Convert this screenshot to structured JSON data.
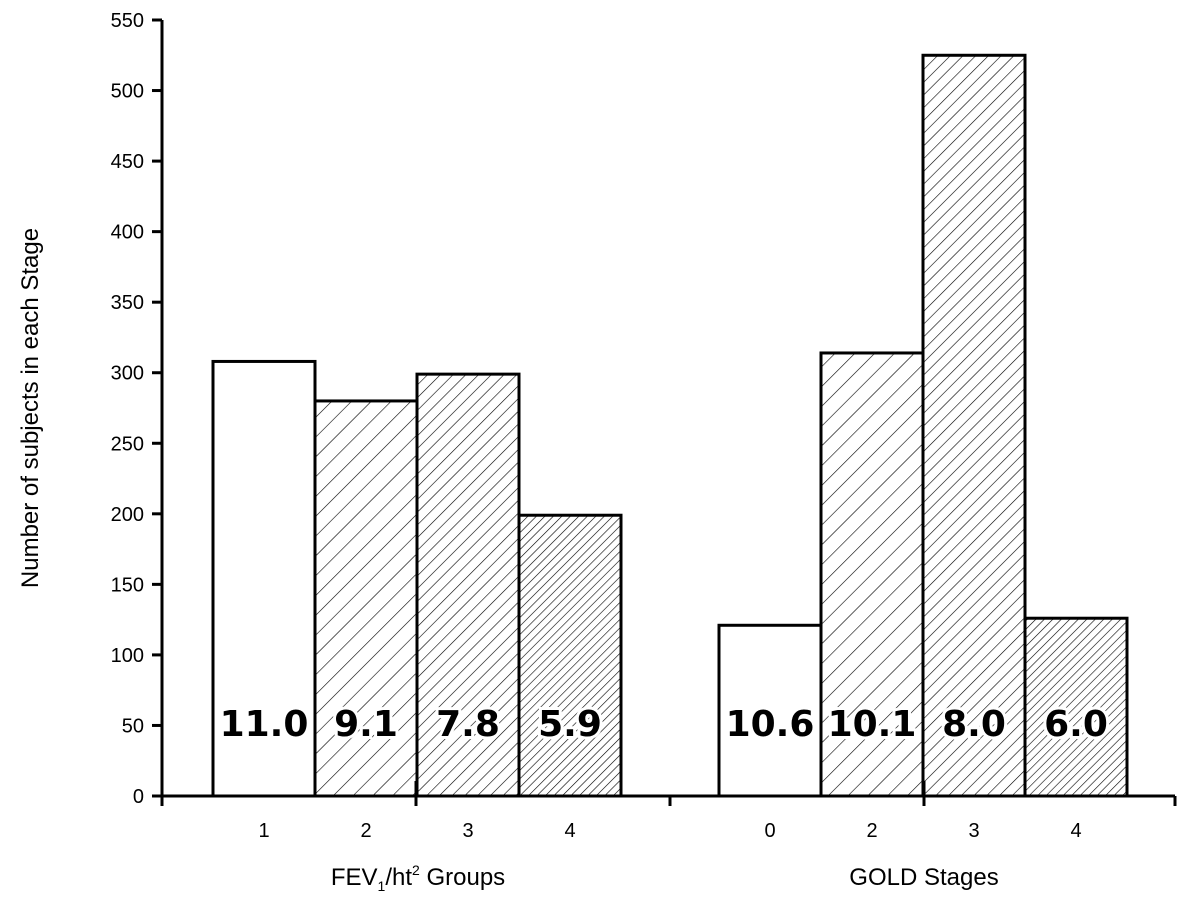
{
  "chart_data": {
    "type": "bar",
    "ylabel": "Number of subjects in each Stage",
    "ylim": [
      0,
      550
    ],
    "yticks": [
      0,
      50,
      100,
      150,
      200,
      250,
      300,
      350,
      400,
      450,
      500,
      550
    ],
    "grid": false,
    "groups": [
      {
        "label": "FEV1/ht2 Groups",
        "label_parts": {
          "a": "FEV",
          "b": "1",
          "c": "/ht",
          "d": "2",
          "e": " Groups"
        },
        "categories": [
          "1",
          "2",
          "3",
          "4"
        ],
        "values": [
          308,
          280,
          299,
          199
        ],
        "bar_labels": [
          "11.0",
          "9.1",
          "7.8",
          "5.9"
        ],
        "patterns": [
          "none",
          "sparse-hatch",
          "medium-hatch",
          "dense-hatch"
        ]
      },
      {
        "label": "GOLD Stages",
        "categories": [
          "0",
          "2",
          "3",
          "4"
        ],
        "values": [
          121,
          314,
          525,
          126
        ],
        "bar_labels": [
          "10.6",
          "10.1",
          "8.0",
          "6.0"
        ],
        "patterns": [
          "none",
          "sparse-hatch",
          "medium-hatch",
          "dense-hatch"
        ]
      }
    ]
  }
}
